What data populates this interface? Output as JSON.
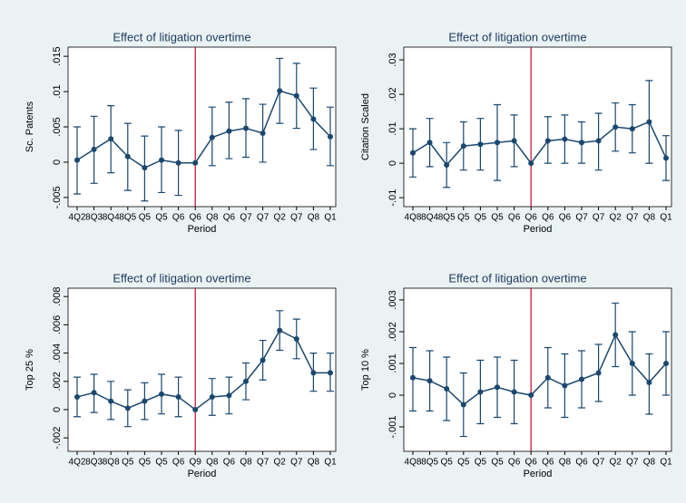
{
  "chart_data": [
    {
      "type": "line",
      "title": "Effect of litigation overtime",
      "ylabel": "Sc. Patents",
      "xlabel": "Period",
      "categories": [
        "4Q2",
        "8Q3",
        "8Q4",
        "8Q5",
        "Q5",
        "Q5",
        "Q6",
        "Q6",
        "Q8",
        "Q6",
        "Q7",
        "Q7",
        "Q2",
        "Q7",
        "Q8",
        "Q1"
      ],
      "values": [
        0.0003,
        0.0018,
        0.0033,
        0.0008,
        -0.0008,
        0.0003,
        -0.0001,
        -0.0001,
        0.0035,
        0.0044,
        0.0048,
        0.0041,
        0.0101,
        0.0094,
        0.0061,
        0.0036
      ],
      "ci_low": [
        -0.0045,
        -0.003,
        -0.0015,
        -0.004,
        -0.0055,
        -0.0043,
        -0.0047,
        null,
        -0.0005,
        0.0005,
        0.0007,
        0.0,
        0.0055,
        0.0048,
        0.0018,
        -0.0005
      ],
      "ci_high": [
        0.005,
        0.0065,
        0.008,
        0.0055,
        0.0037,
        0.005,
        0.0045,
        null,
        0.0078,
        0.0085,
        0.009,
        0.0082,
        0.0147,
        0.014,
        0.0105,
        0.0078
      ],
      "color": "#1a476f",
      "reference_line": {
        "category_index": 7,
        "color": "#c10534"
      },
      "ylim": [
        -0.0063,
        0.0163
      ],
      "yticks": [
        {
          "value": -0.005,
          "label": "-.005"
        },
        0,
        {
          "value": 0.005,
          "label": ".005"
        },
        {
          "value": 0.01,
          "label": ".01"
        },
        {
          "value": 0.015,
          "label": ".015"
        }
      ]
    },
    {
      "type": "line",
      "title": "Effect of litigation overtime",
      "ylabel": "Citation Scaled",
      "xlabel": "Period",
      "categories": [
        "4Q8",
        "8Q4",
        "8Q5",
        "Q5",
        "Q5",
        "Q5",
        "Q6",
        "Q6",
        "Q6",
        "Q6",
        "Q7",
        "Q7",
        "Q2",
        "Q7",
        "Q8",
        "Q1"
      ],
      "values": [
        0.003,
        0.006,
        -0.0005,
        0.005,
        0.0055,
        0.006,
        0.0065,
        0,
        0.0065,
        0.007,
        0.006,
        0.0065,
        0.0105,
        0.01,
        0.012,
        0.0015
      ],
      "ci_low": [
        -0.004,
        -0.001,
        -0.007,
        -0.002,
        -0.002,
        -0.005,
        -0.001,
        null,
        0,
        0,
        0,
        -0.002,
        0.0035,
        0.003,
        0,
        -0.005
      ],
      "ci_high": [
        0.01,
        0.013,
        0.006,
        0.012,
        0.013,
        0.017,
        0.014,
        null,
        0.0135,
        0.014,
        0.012,
        0.0145,
        0.0175,
        0.017,
        0.024,
        0.008
      ],
      "color": "#1a476f",
      "reference_line": {
        "category_index": 7,
        "color": "#c10534"
      },
      "ylim": [
        -0.0126,
        0.0337
      ],
      "yticks": [
        {
          "value": -0.01,
          "label": "-.01"
        },
        0,
        {
          "value": 0.01,
          "label": ".01"
        },
        {
          "value": 0.02,
          "label": ".02"
        },
        {
          "value": 0.03,
          "label": ".03"
        }
      ]
    },
    {
      "type": "line",
      "title": "Effect of litigation overtime",
      "ylabel": "Top 25 %",
      "xlabel": "Period",
      "categories": [
        "4Q2",
        "8Q3",
        "8Q8",
        "Q5",
        "Q5",
        "Q5",
        "Q6",
        "Q9",
        "Q8",
        "Q6",
        "Q8",
        "Q7",
        "Q2",
        "Q7",
        "Q8",
        "Q1"
      ],
      "values": [
        0.0009,
        0.0012,
        0.0006,
        0.0001,
        0.0006,
        0.0011,
        0.0009,
        0,
        0.0009,
        0.001,
        0.002,
        0.0035,
        0.0056,
        0.005,
        0.0026,
        0.0026
      ],
      "ci_low": [
        -0.0005,
        -0.0002,
        -0.0007,
        -0.0012,
        -0.0007,
        -0.0003,
        -0.0005,
        null,
        -0.0004,
        -0.0003,
        0.0007,
        0.0021,
        0.0042,
        0.0036,
        0.0013,
        0.0013
      ],
      "ci_high": [
        0.0023,
        0.0025,
        0.002,
        0.0014,
        0.0019,
        0.0025,
        0.0023,
        null,
        0.0022,
        0.0023,
        0.0033,
        0.0049,
        0.007,
        0.0064,
        0.004,
        0.004
      ],
      "color": "#1a476f",
      "reference_line": {
        "category_index": 7,
        "color": "#c10534"
      },
      "ylim": [
        -0.00295,
        0.00859
      ],
      "yticks": [
        {
          "value": -0.002,
          "label": "-.002"
        },
        0,
        {
          "value": 0.002,
          "label": ".002"
        },
        {
          "value": 0.004,
          "label": ".004"
        },
        {
          "value": 0.006,
          "label": ".006"
        },
        {
          "value": 0.008,
          "label": ".008"
        }
      ]
    },
    {
      "type": "line",
      "title": "Effect of litigation overtime",
      "ylabel": "Top 10 %",
      "xlabel": "Period",
      "categories": [
        "4Q8",
        "8Q5",
        "Q5",
        "Q5",
        "Q5",
        "Q5",
        "Q6",
        "Q6",
        "Q6",
        "Q8",
        "Q6",
        "Q7",
        "Q2",
        "Q7",
        "Q8",
        "Q1"
      ],
      "values": [
        0.00055,
        0.00045,
        0.0002,
        -0.0003,
        0.0001,
        0.00025,
        0.0001,
        0,
        0.00055,
        0.0003,
        0.0005,
        0.0007,
        0.0019,
        0.001,
        0.0004,
        0.001
      ],
      "ci_low": [
        -0.0005,
        -0.0005,
        -0.0008,
        -0.0013,
        -0.0009,
        -0.0007,
        -0.0009,
        null,
        -0.0004,
        -0.0007,
        -0.0004,
        -0.0002,
        0.0009,
        0,
        -0.0006,
        0
      ],
      "ci_high": [
        0.0015,
        0.0014,
        0.0012,
        0.0007,
        0.0011,
        0.0012,
        0.0011,
        null,
        0.0015,
        0.0013,
        0.0014,
        0.0016,
        0.0029,
        0.002,
        0.0013,
        0.002
      ],
      "color": "#1a476f",
      "reference_line": {
        "category_index": 7,
        "color": "#c10534"
      },
      "ylim": [
        -0.00177,
        0.00337
      ],
      "yticks": [
        {
          "value": -0.001,
          "label": "-.001"
        },
        0,
        {
          "value": 0.001,
          "label": ".001"
        },
        {
          "value": 0.002,
          "label": ".002"
        },
        {
          "value": 0.003,
          "label": ".003"
        }
      ]
    }
  ]
}
